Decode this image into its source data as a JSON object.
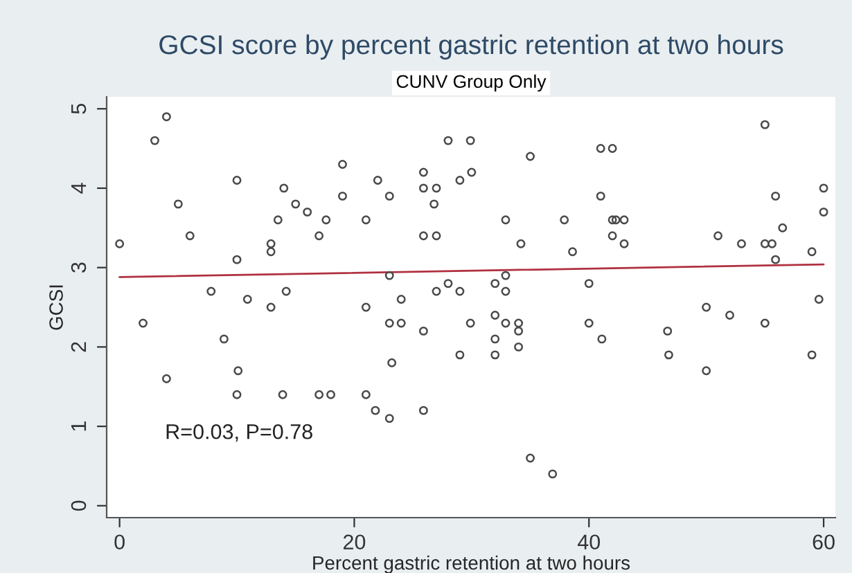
{
  "chart_data": {
    "type": "scatter",
    "title": "GCSI score by percent gastric retention at two hours",
    "subtitle": "CUNV Group Only",
    "xlabel": "Percent gastric retention at two hours",
    "ylabel": "GCSI",
    "xlim": [
      -1.1,
      61
    ],
    "ylim": [
      -0.15,
      5.15
    ],
    "xticks": [
      0,
      20,
      40,
      60
    ],
    "yticks": [
      0,
      1,
      2,
      3,
      4,
      5
    ],
    "grid": false,
    "legend": false,
    "marker": "circle",
    "annotations": [
      "R=0.03, P=0.78"
    ],
    "series": [
      {
        "color": "#4a4a4a",
        "x": [
          0,
          2,
          3,
          4,
          4,
          5,
          6,
          7.8,
          8.9,
          10,
          10,
          10.1,
          10,
          10.9,
          12.9,
          12.9,
          12.9,
          13.5,
          14,
          13.9,
          14.2,
          15,
          16,
          17,
          17,
          17.6,
          18,
          19,
          19,
          21,
          21,
          21,
          21.8,
          22,
          23,
          23,
          23,
          23,
          23.2,
          24,
          24,
          25.9,
          25.9,
          25.9,
          25.9,
          25.9,
          27,
          26.8,
          27,
          27,
          28,
          28,
          29,
          29,
          29,
          29.9,
          30,
          29.9,
          32,
          32,
          32,
          32,
          32.9,
          32.9,
          32.9,
          32.9,
          34,
          34,
          34,
          34.2,
          35,
          35,
          36.9,
          37.9,
          38.6,
          40,
          40,
          41,
          41,
          41.1,
          42,
          42,
          42.3,
          43,
          42,
          43,
          46.7,
          46.8,
          50,
          50,
          51,
          52,
          53,
          55,
          55,
          55.6,
          55,
          55.9,
          55.9,
          56.5,
          59,
          59,
          59.6,
          60,
          60
        ],
        "values": [
          3.3,
          2.3,
          4.6,
          4.9,
          1.6,
          3.8,
          3.4,
          2.7,
          2.1,
          4.1,
          3.1,
          1.7,
          1.4,
          2.6,
          3.3,
          3.2,
          2.5,
          3.6,
          4.0,
          1.4,
          2.7,
          3.8,
          3.7,
          3.4,
          1.4,
          3.6,
          1.4,
          4.3,
          3.9,
          3.6,
          2.5,
          1.4,
          1.2,
          4.1,
          3.9,
          2.9,
          2.3,
          1.1,
          1.8,
          2.6,
          2.3,
          4.2,
          4.0,
          3.4,
          2.2,
          1.2,
          4.0,
          3.8,
          3.4,
          2.7,
          4.6,
          2.8,
          4.1,
          2.7,
          1.9,
          4.6,
          4.2,
          2.3,
          2.8,
          2.4,
          2.1,
          1.9,
          3.6,
          2.9,
          2.7,
          2.3,
          2.3,
          2.2,
          2.0,
          3.3,
          4.4,
          0.6,
          0.4,
          3.6,
          3.2,
          2.8,
          2.3,
          4.5,
          3.9,
          2.1,
          4.5,
          3.6,
          3.6,
          3.6,
          3.4,
          3.3,
          2.2,
          1.9,
          2.5,
          1.7,
          3.4,
          2.4,
          3.3,
          4.8,
          3.3,
          3.3,
          2.3,
          3.9,
          3.1,
          3.5,
          3.2,
          1.9,
          2.6,
          4.0,
          3.7
        ]
      },
      {
        "type": "line",
        "color": "#b03040",
        "marker": "none",
        "x": [
          0,
          60
        ],
        "values": [
          2.88,
          3.04
        ]
      }
    ]
  }
}
